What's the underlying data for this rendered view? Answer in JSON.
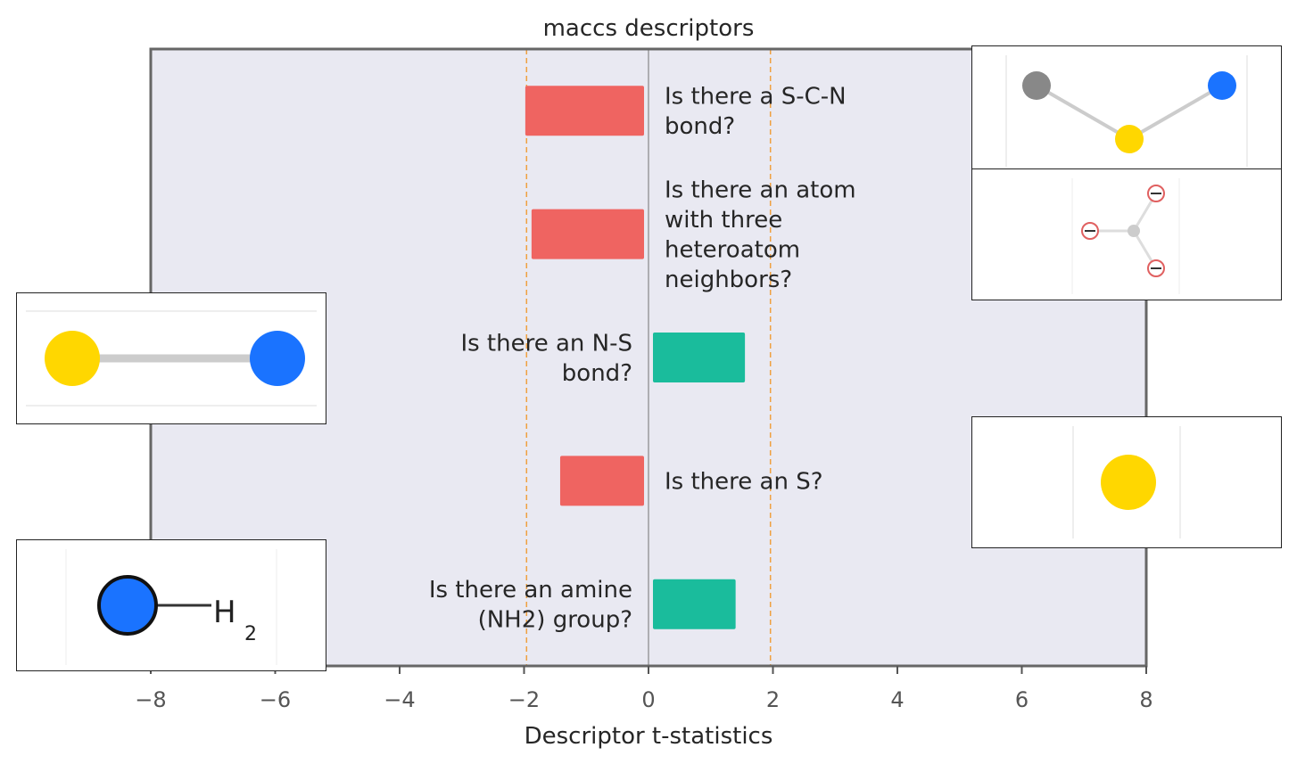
{
  "chart_data": {
    "type": "bar",
    "orientation": "horizontal",
    "title": "maccs descriptors",
    "xlabel": "Descriptor t-statistics",
    "ylabel": "",
    "xlim": [
      -8,
      8
    ],
    "xticks": [
      -8,
      -6,
      -4,
      -2,
      0,
      2,
      4,
      6,
      8
    ],
    "xtick_labels": [
      "−8",
      "−6",
      "−4",
      "−2",
      "0",
      "2",
      "4",
      "6",
      "8"
    ],
    "threshold_lines": [
      -1.96,
      1.96
    ],
    "grid": false,
    "bars": [
      {
        "label": [
          "Is there a S-C-N",
          "bond?"
        ],
        "value": -1.98
      },
      {
        "label": [
          "Is there an atom",
          "with three",
          "heteroatom",
          "neighbors?"
        ],
        "value": -1.88
      },
      {
        "label": [
          "Is there an N-S",
          "bond?"
        ],
        "value": 1.55
      },
      {
        "label": [
          "Is there an S?"
        ],
        "value": -1.42
      },
      {
        "label": [
          "Is there an amine",
          "(NH2) group?"
        ],
        "value": 1.4
      }
    ]
  },
  "colors": {
    "negative": "#ef6461",
    "positive": "#1abc9c",
    "plot_background": "#e9e9f2",
    "threshold": "#f0a040",
    "zero_line": "#888888"
  },
  "insets": {
    "scn": "S-C-N fragment structure",
    "heteroatom": "atom with three heteroatom neighbors structure",
    "ns": "N-S fragment structure",
    "s": "S atom structure",
    "amine": "amine group structure",
    "amine_text": {
      "h": "H",
      "sub": "2"
    }
  }
}
